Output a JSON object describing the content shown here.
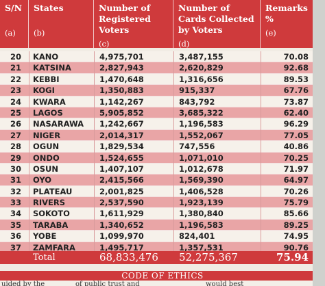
{
  "header": {
    "sn": {
      "label": "S/N",
      "sub": "(a)"
    },
    "states": {
      "label": "States",
      "sub": "(b)"
    },
    "registered": {
      "label": "Number of Registered Voters",
      "sub": "(c)"
    },
    "cards": {
      "label": "Number of Cards Collected by Voters",
      "sub": "(d)"
    },
    "remarks": {
      "label": "Remarks %",
      "sub": "(e)"
    }
  },
  "rows": [
    {
      "sn": "20",
      "state": "KANO",
      "registered": "4,975,701",
      "cards": "3,487,155",
      "remarks": "70.08"
    },
    {
      "sn": "21",
      "state": "KATSINA",
      "registered": "2,827,943",
      "cards": "2,620,829",
      "remarks": "92.68"
    },
    {
      "sn": "22",
      "state": "KEBBI",
      "registered": "1,470,648",
      "cards": "1,316,656",
      "remarks": "89.53"
    },
    {
      "sn": "23",
      "state": "KOGI",
      "registered": "1,350,883",
      "cards": "915,337",
      "remarks": "67.76"
    },
    {
      "sn": "24",
      "state": "KWARA",
      "registered": "1,142,267",
      "cards": "843,792",
      "remarks": "73.87"
    },
    {
      "sn": "25",
      "state": "LAGOS",
      "registered": "5,905,852",
      "cards": "3,685,322",
      "remarks": "62.40"
    },
    {
      "sn": "26",
      "state": "NASARAWA",
      "registered": "1,242,667",
      "cards": "1,196,583",
      "remarks": "96.29"
    },
    {
      "sn": "27",
      "state": "NIGER",
      "registered": "2,014,317",
      "cards": "1,552,067",
      "remarks": "77.05"
    },
    {
      "sn": "28",
      "state": "OGUN",
      "registered": "1,829,534",
      "cards": "747,556",
      "remarks": "40.86"
    },
    {
      "sn": "29",
      "state": "ONDO",
      "registered": "1,524,655",
      "cards": "1,071,010",
      "remarks": "70.25"
    },
    {
      "sn": "30",
      "state": "OSUN",
      "registered": "1,407,107",
      "cards": "1,012,678",
      "remarks": "71.97"
    },
    {
      "sn": "31",
      "state": "OYO",
      "registered": "2,415,566",
      "cards": "1,569,390",
      "remarks": "64.97"
    },
    {
      "sn": "32",
      "state": "PLATEAU",
      "registered": "2,001,825",
      "cards": "1,406,528",
      "remarks": "70.26"
    },
    {
      "sn": "33",
      "state": "RIVERS",
      "registered": "2,537,590",
      "cards": "1,923,139",
      "remarks": "75.79"
    },
    {
      "sn": "34",
      "state": "SOKOTO",
      "registered": "1,611,929",
      "cards": "1,380,840",
      "remarks": "85.66"
    },
    {
      "sn": "35",
      "state": "TARABA",
      "registered": "1,340,652",
      "cards": "1,196,583",
      "remarks": "89.25"
    },
    {
      "sn": "36",
      "state": "YOBE",
      "registered": "1,099,970",
      "cards": "824,401",
      "remarks": "74.95"
    },
    {
      "sn": "37",
      "state": "ZAMFARA",
      "registered": "1,495,717",
      "cards": "1,357,531",
      "remarks": "90.76"
    }
  ],
  "total": {
    "label": "Total",
    "registered": "68,833,476",
    "cards": "52,275,367",
    "remarks": "75.94"
  },
  "footer": {
    "section_title": "CODE OF ETHICS",
    "partial_text_1": "uided by the",
    "partial_text_2": "of public trust and",
    "partial_text_3": "would best"
  },
  "colors": {
    "header_red": "#cf3a3c",
    "row_pink": "#e9a5a6",
    "row_cream": "#f6f1ea"
  }
}
